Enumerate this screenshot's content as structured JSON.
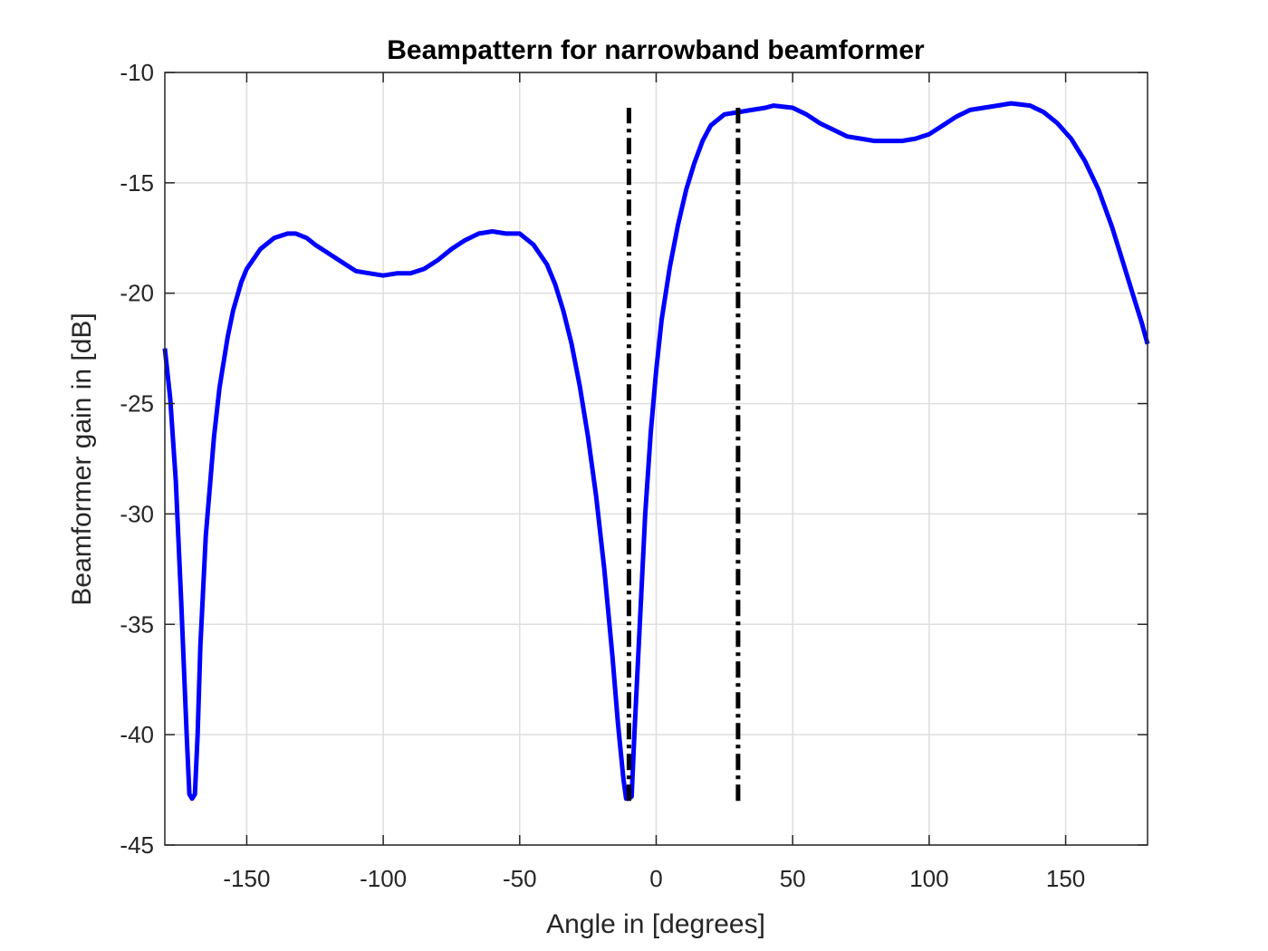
{
  "chart_data": {
    "type": "line",
    "title": "Beampattern for narrowband beamformer",
    "xlabel": "Angle in [degrees]",
    "ylabel": "Beamformer gain in [dB]",
    "xlim": [
      -180,
      180
    ],
    "ylim": [
      -45,
      -10
    ],
    "xticks": [
      -150,
      -100,
      -50,
      0,
      50,
      100,
      150
    ],
    "yticks": [
      -45,
      -40,
      -35,
      -30,
      -25,
      -20,
      -15,
      -10
    ],
    "grid": true,
    "legend": "none",
    "series": [
      {
        "style": "solid",
        "color": "#0000ff",
        "x": [
          -180,
          -178,
          -176,
          -174,
          -172,
          -171,
          -170,
          -169,
          -168,
          -167,
          -165,
          -162,
          -160,
          -157,
          -155,
          -152,
          -150,
          -145,
          -140,
          -135,
          -132,
          -128,
          -125,
          -120,
          -115,
          -110,
          -105,
          -100,
          -95,
          -90,
          -85,
          -80,
          -75,
          -70,
          -65,
          -60,
          -55,
          -50,
          -45,
          -40,
          -37,
          -34,
          -31,
          -28,
          -25,
          -22,
          -19,
          -16,
          -14,
          -12,
          -11,
          -10,
          -9,
          -8,
          -6,
          -4,
          -2,
          0,
          2,
          5,
          8,
          11,
          14,
          17,
          20,
          25,
          30,
          35,
          40,
          43,
          50,
          55,
          60,
          65,
          70,
          75,
          80,
          85,
          90,
          95,
          100,
          105,
          110,
          115,
          120,
          125,
          130,
          137,
          142,
          147,
          152,
          157,
          162,
          167,
          171,
          175,
          178,
          180
        ],
        "y": [
          -22.5,
          -24.8,
          -28.5,
          -34.0,
          -40.0,
          -42.7,
          -42.9,
          -42.7,
          -40.0,
          -36.0,
          -31.0,
          -26.5,
          -24.3,
          -22.0,
          -20.8,
          -19.5,
          -18.9,
          -18.0,
          -17.5,
          -17.3,
          -17.3,
          -17.5,
          -17.8,
          -18.2,
          -18.6,
          -19.0,
          -19.1,
          -19.2,
          -19.1,
          -19.1,
          -18.9,
          -18.5,
          -18.0,
          -17.6,
          -17.3,
          -17.2,
          -17.3,
          -17.3,
          -17.8,
          -18.7,
          -19.6,
          -20.8,
          -22.3,
          -24.2,
          -26.5,
          -29.2,
          -32.5,
          -36.5,
          -39.5,
          -42.0,
          -42.9,
          -42.9,
          -42.8,
          -40.0,
          -35.0,
          -30.0,
          -26.3,
          -23.5,
          -21.2,
          -18.8,
          -16.9,
          -15.3,
          -14.1,
          -13.1,
          -12.4,
          -11.9,
          -11.8,
          -11.7,
          -11.6,
          -11.5,
          -11.6,
          -11.9,
          -12.3,
          -12.6,
          -12.9,
          -13.0,
          -13.1,
          -13.1,
          -13.1,
          -13.0,
          -12.8,
          -12.4,
          -12.0,
          -11.7,
          -11.6,
          -11.5,
          -11.4,
          -11.5,
          -11.8,
          -12.3,
          -13.0,
          -14.0,
          -15.3,
          -17.0,
          -18.6,
          -20.2,
          -21.4,
          -22.3
        ]
      },
      {
        "style": "dash-dot",
        "color": "#000000",
        "x": [
          -10,
          -10
        ],
        "y": [
          -43,
          -11.6
        ]
      },
      {
        "style": "dash-dot",
        "color": "#000000",
        "x": [
          30,
          30
        ],
        "y": [
          -43,
          -11.6
        ]
      }
    ]
  }
}
